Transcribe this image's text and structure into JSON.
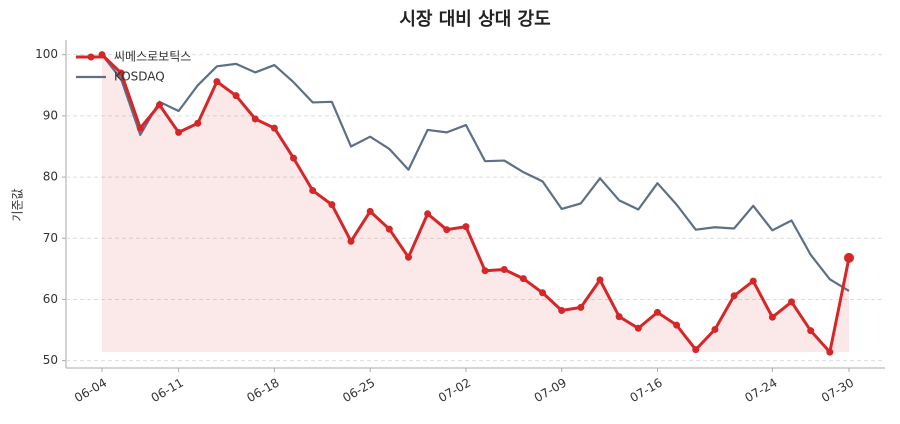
{
  "chart_data": {
    "type": "line",
    "title": "시장 대비 상대 강도",
    "y_label": "기준값",
    "categories": [
      "06-04",
      null,
      null,
      null,
      "06-11",
      null,
      null,
      null,
      null,
      "06-18",
      null,
      null,
      null,
      null,
      "06-25",
      null,
      null,
      null,
      null,
      "07-02",
      null,
      null,
      null,
      null,
      "07-09",
      null,
      null,
      null,
      null,
      "07-16",
      null,
      null,
      null,
      null,
      null,
      "07-24",
      null,
      null,
      null,
      "07-30"
    ],
    "series": [
      {
        "name": "씨메스로보틱스",
        "color": "#d62728",
        "area": true,
        "values": [
          100,
          97,
          88,
          91.8,
          87.3,
          88.8,
          95.6,
          93.3,
          89.5,
          88.0,
          83.1,
          77.8,
          75.5,
          69.5,
          74.4,
          71.5,
          66.9,
          74.0,
          71.4,
          71.9,
          64.7,
          64.9,
          63.4,
          61.1,
          58.2,
          58.7,
          63.2,
          57.2,
          55.3,
          57.9,
          55.8,
          51.8,
          55.1,
          60.6,
          63.0,
          57.1,
          59.6,
          54.9,
          51.4,
          66.8
        ]
      },
      {
        "name": "KOSDAQ",
        "color": "#5f6f85",
        "values": [
          100,
          96,
          86.9,
          92.3,
          90.8,
          95.0,
          98.1,
          98.5,
          97.1,
          98.3,
          95.5,
          92.2,
          92.3,
          85.0,
          86.6,
          84.6,
          81.2,
          87.7,
          87.3,
          88.5,
          82.6,
          82.7,
          80.8,
          79.3,
          74.8,
          75.7,
          79.8,
          76.2,
          74.7,
          79.0,
          75.5,
          71.4,
          71.8,
          71.6,
          75.3,
          71.3,
          72.9,
          67.3,
          63.3,
          61.4
        ]
      }
    ],
    "ylim": [
      48.8,
      102.4
    ],
    "yticks": [
      50,
      60,
      70,
      80,
      90,
      100
    ],
    "grid": true,
    "legend": "upper-left"
  }
}
